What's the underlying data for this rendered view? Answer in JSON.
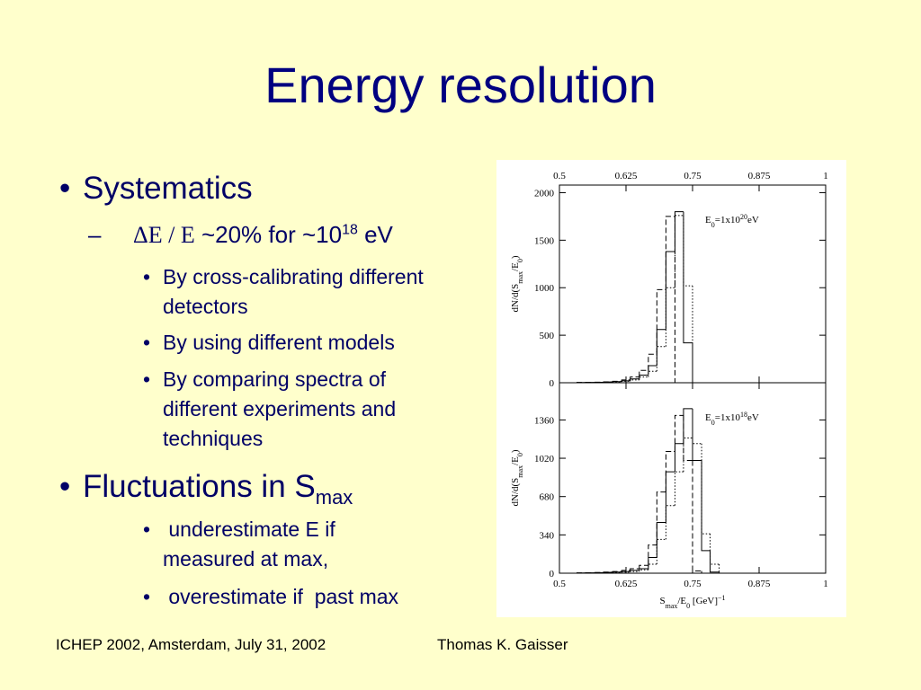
{
  "title": "Energy resolution",
  "bullets": {
    "systematics": "Systematics",
    "resolution": {
      "symbol": "ΔE / E",
      "text": " ~20% for ~10",
      "sup": "18",
      "unit": " eV"
    },
    "methods": [
      "By cross-calibrating different detectors",
      "By using different models",
      "By comparing spectra of different experiments and techniques"
    ],
    "fluctuations": {
      "text": "Fluctuations in S",
      "sub": "max"
    },
    "effects": [
      " underestimate E if measured at max,",
      " overestimate if  past max"
    ]
  },
  "footer": {
    "left": "ICHEP 2002, Amsterdam, July 31, 2002",
    "right": "Thomas K. Gaisser"
  },
  "chart_data": [
    {
      "type": "histogram",
      "annotation": [
        "E",
        "0",
        "=1x10",
        "20",
        "eV"
      ],
      "ylabel": [
        "dN/d(S",
        "max",
        "/E",
        "0",
        ")"
      ],
      "xtick_side": "top",
      "xlim": [
        0.5,
        1
      ],
      "xticks": [
        0.5,
        0.625,
        0.75,
        0.875,
        1
      ],
      "ylim": [
        0,
        2080
      ],
      "yticks": [
        0,
        500,
        1000,
        1500,
        2000
      ],
      "bins": [
        0.5,
        0.517,
        0.533,
        0.55,
        0.567,
        0.583,
        0.6,
        0.617,
        0.633,
        0.65,
        0.667,
        0.683,
        0.7,
        0.717,
        0.733,
        0.75,
        0.767,
        0.783,
        0.8
      ],
      "series": [
        {
          "color": "#000000",
          "style": "solid",
          "values": [
            0,
            0,
            2,
            3,
            5,
            8,
            12,
            20,
            40,
            80,
            180,
            560,
            1380,
            1800,
            420,
            0,
            0,
            0
          ]
        },
        {
          "color": "#000000",
          "style": "dashed",
          "values": [
            0,
            0,
            3,
            4,
            6,
            10,
            15,
            30,
            60,
            130,
            300,
            980,
            1750,
            0,
            0,
            0,
            0,
            0
          ]
        },
        {
          "color": "#000000",
          "style": "dotted",
          "values": [
            0,
            0,
            1,
            2,
            4,
            6,
            10,
            15,
            30,
            60,
            120,
            380,
            1000,
            1760,
            1020,
            0,
            0,
            0
          ]
        }
      ]
    },
    {
      "type": "histogram",
      "annotation": [
        "E",
        "0",
        "=1x10",
        "18",
        "eV"
      ],
      "ylabel": [
        "dN/d(S",
        "max",
        "/E",
        "0",
        ")"
      ],
      "xlabel": [
        "S",
        "max",
        "/E",
        "0",
        "  [GeV]",
        "−1"
      ],
      "xtick_side": "bottom",
      "xlim": [
        0.5,
        1
      ],
      "xticks": [
        0.5,
        0.625,
        0.75,
        0.875,
        1
      ],
      "ylim": [
        0,
        1690
      ],
      "yticks": [
        0,
        340,
        680,
        1020,
        1360
      ],
      "bins": [
        0.5,
        0.517,
        0.533,
        0.55,
        0.567,
        0.583,
        0.6,
        0.617,
        0.633,
        0.65,
        0.667,
        0.683,
        0.7,
        0.717,
        0.733,
        0.75,
        0.767,
        0.783,
        0.8
      ],
      "series": [
        {
          "color": "#000000",
          "style": "solid",
          "values": [
            0,
            0,
            2,
            3,
            5,
            8,
            10,
            15,
            25,
            40,
            140,
            450,
            900,
            1150,
            1460,
            1000,
            200,
            10
          ]
        },
        {
          "color": "#000000",
          "style": "dashed",
          "values": [
            0,
            0,
            3,
            4,
            6,
            10,
            15,
            25,
            40,
            70,
            250,
            720,
            1080,
            1400,
            1000,
            20,
            0,
            0
          ]
        },
        {
          "color": "#000000",
          "style": "dotted",
          "values": [
            0,
            0,
            1,
            2,
            3,
            5,
            8,
            10,
            15,
            30,
            80,
            300,
            600,
            900,
            1200,
            1150,
            350,
            80
          ]
        }
      ]
    }
  ]
}
